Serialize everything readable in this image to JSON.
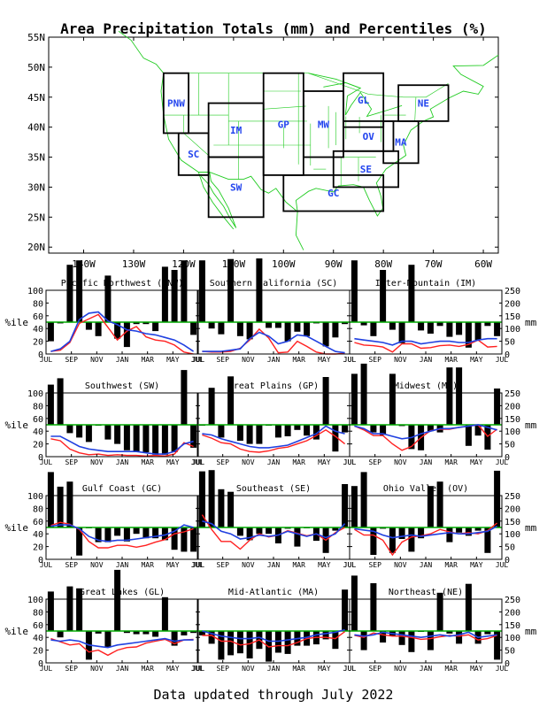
{
  "page": {
    "title": "Area Precipitation Totals (mm) and Percentiles (%)",
    "footer": "Data updated through July 2022"
  },
  "colors": {
    "bar": "#000000",
    "percentile_line": "#ff2020",
    "precip_line": "#2040e0",
    "median_line": "#00aa00",
    "region_label": "#2244ee",
    "map_lines": "#22cc22",
    "map_box": "#000000"
  },
  "map": {
    "lat_ticks": [
      "55N",
      "50N",
      "45N",
      "40N",
      "35N",
      "30N",
      "25N",
      "20N"
    ],
    "lon_ticks": [
      "140W",
      "130W",
      "120W",
      "110W",
      "100W",
      "90W",
      "80W",
      "70W",
      "60W"
    ],
    "regions": [
      {
        "code": "PNW",
        "lon": [
          -124,
          -119
        ],
        "lat": [
          39,
          49
        ]
      },
      {
        "code": "SC",
        "lon": [
          -121,
          -115
        ],
        "lat": [
          32,
          39
        ]
      },
      {
        "code": "IM",
        "lon": [
          -115,
          -104
        ],
        "lat": [
          35,
          44
        ]
      },
      {
        "code": "SW",
        "lon": [
          -115,
          -104
        ],
        "lat": [
          25,
          35
        ]
      },
      {
        "code": "GP",
        "lon": [
          -104,
          -96
        ],
        "lat": [
          32,
          49
        ]
      },
      {
        "code": "MW",
        "lon": [
          -96,
          -88
        ],
        "lat": [
          35,
          46
        ]
      },
      {
        "code": "GL",
        "lon": [
          -88,
          -80
        ],
        "lat": [
          40,
          49
        ]
      },
      {
        "code": "NE",
        "lon": [
          -77,
          -67
        ],
        "lat": [
          41,
          47
        ]
      },
      {
        "code": "OV",
        "lon": [
          -88,
          -78
        ],
        "lat": [
          36,
          41
        ]
      },
      {
        "code": "MA",
        "lon": [
          -80,
          -73
        ],
        "lat": [
          34,
          41
        ]
      },
      {
        "code": "SE",
        "lon": [
          -90,
          -77
        ],
        "lat": [
          30,
          36
        ]
      },
      {
        "code": "GC",
        "lon": [
          -100,
          -80
        ],
        "lat": [
          26,
          32
        ]
      }
    ]
  },
  "axes": {
    "x_ticks": [
      "JUL",
      "SEP",
      "NOV",
      "JAN",
      "MAR",
      "MAY",
      "JUL"
    ],
    "pct_ticks": [
      "100",
      "80",
      "60",
      "40",
      "20",
      "0"
    ],
    "mm_ticks": [
      "250",
      "200",
      "150",
      "100",
      "50",
      "0"
    ],
    "pct_label": "%ile",
    "mm_label": "mm"
  },
  "chart_data": [
    {
      "type": "bar",
      "title": "Pacific Northwest (PNW)",
      "ylim_pct": [
        0,
        100
      ],
      "ylim_mm": [
        0,
        250
      ],
      "bars": [
        -30,
        -2,
        90,
        97,
        -12,
        -22,
        73,
        -26,
        -39,
        -3,
        -3,
        -14,
        87,
        82,
        97,
        -20
      ],
      "percentile": [
        4,
        6,
        18,
        48,
        55,
        62,
        42,
        22,
        36,
        43,
        27,
        22,
        20,
        14,
        3,
        0
      ],
      "precip_mm": [
        10,
        20,
        50,
        135,
        160,
        165,
        130,
        115,
        95,
        90,
        80,
        75,
        65,
        55,
        35,
        10
      ]
    },
    {
      "type": "bar",
      "title": "Southern California (SC)",
      "ylim_pct": [
        0,
        100
      ],
      "ylim_mm": [
        0,
        250
      ],
      "bars": [
        97,
        -10,
        -19,
        99,
        -22,
        -27,
        100,
        -9,
        -9,
        -30,
        -15,
        -22,
        -2,
        -38,
        -24,
        -3
      ],
      "percentile": [
        4,
        3,
        3,
        4,
        9,
        22,
        39,
        25,
        2,
        3,
        20,
        12,
        3,
        0,
        0,
        1
      ],
      "precip_mm": [
        10,
        10,
        10,
        15,
        20,
        60,
        85,
        70,
        40,
        50,
        75,
        70,
        50,
        30,
        10,
        5
      ]
    },
    {
      "type": "bar",
      "title": "Inter-Mountain (IM)",
      "ylim_pct": [
        0,
        100
      ],
      "ylim_mm": [
        0,
        250
      ],
      "bars": [
        97,
        -5,
        -22,
        82,
        -12,
        -33,
        90,
        -13,
        -18,
        -6,
        -23,
        -20,
        -40,
        -28,
        -6,
        -22
      ],
      "percentile": [
        18,
        14,
        13,
        11,
        3,
        16,
        16,
        9,
        10,
        13,
        14,
        12,
        15,
        22,
        11,
        12
      ],
      "precip_mm": [
        60,
        55,
        50,
        45,
        35,
        50,
        50,
        40,
        45,
        50,
        50,
        45,
        45,
        55,
        60,
        60
      ]
    },
    {
      "type": "bar",
      "title": "Southwest (SW)",
      "ylim_pct": [
        0,
        100
      ],
      "ylim_mm": [
        0,
        250
      ],
      "bars": [
        63,
        73,
        -13,
        -20,
        -27,
        -1,
        -23,
        -30,
        -40,
        -43,
        -43,
        -47,
        -47,
        -43,
        86,
        -36
      ],
      "percentile": [
        28,
        25,
        12,
        6,
        3,
        4,
        2,
        3,
        2,
        2,
        1,
        2,
        1,
        4,
        22,
        16
      ],
      "precip_mm": [
        80,
        80,
        60,
        40,
        30,
        25,
        20,
        20,
        20,
        20,
        15,
        10,
        10,
        20,
        50,
        60
      ]
    },
    {
      "type": "bar",
      "title": "Great Plains (GP)",
      "ylim_pct": [
        0,
        100
      ],
      "ylim_mm": [
        0,
        250
      ],
      "bars": [
        -1,
        58,
        -20,
        76,
        -25,
        -30,
        -30,
        -1,
        -20,
        -18,
        -8,
        -17,
        -23,
        75,
        -42,
        -12
      ],
      "percentile": [
        34,
        29,
        22,
        20,
        12,
        8,
        7,
        9,
        13,
        15,
        20,
        25,
        33,
        42,
        32,
        20
      ],
      "precip_mm": [
        90,
        85,
        70,
        60,
        50,
        40,
        35,
        35,
        40,
        45,
        60,
        75,
        90,
        120,
        100,
        90
      ]
    },
    {
      "type": "bar",
      "title": "Midwest (MW)",
      "ylim_pct": [
        0,
        100
      ],
      "ylim_mm": [
        0,
        250
      ],
      "bars": [
        80,
        96,
        -12,
        -16,
        80,
        -2,
        -38,
        -40,
        -10,
        -12,
        90,
        90,
        -33,
        -17,
        -39,
        57
      ],
      "percentile": [
        48,
        42,
        33,
        33,
        20,
        10,
        16,
        30,
        41,
        43,
        43,
        46,
        48,
        50,
        32,
        43
      ],
      "precip_mm": [
        120,
        110,
        90,
        90,
        80,
        70,
        75,
        90,
        100,
        110,
        110,
        115,
        120,
        125,
        115,
        105
      ]
    },
    {
      "type": "bar",
      "title": "Gulf Coast (GC)",
      "ylim_pct": [
        0,
        100
      ],
      "ylim_mm": [
        0,
        250
      ],
      "bars": [
        87,
        64,
        72,
        -44,
        -1,
        -23,
        -23,
        -13,
        -22,
        -10,
        -17,
        -17,
        -20,
        -35,
        -38,
        -38
      ],
      "percentile": [
        53,
        58,
        55,
        47,
        28,
        18,
        18,
        22,
        22,
        19,
        22,
        27,
        31,
        40,
        43,
        48
      ],
      "precip_mm": [
        130,
        135,
        135,
        120,
        90,
        75,
        70,
        75,
        75,
        80,
        85,
        90,
        95,
        110,
        135,
        125
      ]
    },
    {
      "type": "bar",
      "title": "Southeast (SE)",
      "ylim_pct": [
        0,
        100
      ],
      "ylim_mm": [
        0,
        250
      ],
      "bars": [
        88,
        90,
        60,
        56,
        -13,
        -20,
        -10,
        -10,
        -25,
        -2,
        -30,
        -1,
        -21,
        -40,
        -5,
        68
      ],
      "percentile": [
        70,
        47,
        28,
        28,
        16,
        30,
        40,
        35,
        38,
        45,
        41,
        37,
        40,
        30,
        42,
        50
      ],
      "precip_mm": [
        150,
        140,
        110,
        100,
        80,
        85,
        95,
        90,
        95,
        110,
        100,
        90,
        100,
        85,
        100,
        140
      ]
    },
    {
      "type": "bar",
      "title": "Ohio Valley (OV)",
      "ylim_pct": [
        0,
        100
      ],
      "ylim_mm": [
        0,
        250
      ],
      "bars": [
        65,
        87,
        -43,
        -2,
        -40,
        -18,
        -38,
        -17,
        65,
        72,
        -23,
        -8,
        -13,
        -5,
        -40,
        89
      ],
      "percentile": [
        47,
        38,
        38,
        30,
        7,
        27,
        35,
        37,
        40,
        47,
        43,
        40,
        42,
        40,
        45,
        57
      ],
      "precip_mm": [
        120,
        115,
        110,
        95,
        85,
        90,
        95,
        90,
        95,
        100,
        105,
        100,
        100,
        105,
        110,
        130
      ]
    },
    {
      "type": "bar",
      "title": "Great Lakes (GL)",
      "ylim_pct": [
        0,
        100
      ],
      "ylim_mm": [
        0,
        250
      ],
      "bars": [
        62,
        -10,
        70,
        67,
        -45,
        -4,
        -25,
        96,
        -3,
        -5,
        -5,
        -9,
        53,
        -23,
        -7,
        -3
      ],
      "percentile": [
        38,
        33,
        28,
        30,
        17,
        20,
        12,
        20,
        24,
        25,
        31,
        34,
        37,
        30,
        36,
        37
      ],
      "precip_mm": [
        90,
        85,
        90,
        85,
        70,
        65,
        60,
        70,
        75,
        80,
        85,
        90,
        95,
        85,
        90,
        90
      ]
    },
    {
      "type": "bar",
      "title": "Mid-Atlantic (MA)",
      "ylim_pct": [
        0,
        100
      ],
      "ylim_mm": [
        0,
        250
      ],
      "bars": [
        -7,
        -20,
        -45,
        -38,
        -35,
        -43,
        -28,
        -48,
        -34,
        -36,
        -23,
        -23,
        -21,
        -13,
        -28,
        65
      ],
      "percentile": [
        43,
        43,
        34,
        34,
        28,
        30,
        36,
        25,
        27,
        27,
        32,
        38,
        40,
        40,
        38,
        49
      ],
      "precip_mm": [
        125,
        115,
        105,
        100,
        95,
        95,
        100,
        85,
        85,
        90,
        95,
        100,
        110,
        115,
        120,
        130
      ]
    },
    {
      "type": "bar",
      "title": "Northeast (NE)",
      "ylim_pct": [
        0,
        100
      ],
      "ylim_mm": [
        0,
        250
      ],
      "bars": [
        87,
        -30,
        75,
        -18,
        -8,
        -22,
        -33,
        -1,
        -30,
        60,
        -4,
        -20,
        74,
        -20,
        -5,
        -45
      ],
      "percentile": [
        43,
        40,
        47,
        44,
        42,
        42,
        40,
        37,
        38,
        41,
        43,
        42,
        44,
        36,
        38,
        43
      ],
      "precip_mm": [
        110,
        105,
        110,
        120,
        115,
        110,
        105,
        100,
        105,
        110,
        105,
        110,
        120,
        100,
        105,
        110
      ]
    }
  ]
}
